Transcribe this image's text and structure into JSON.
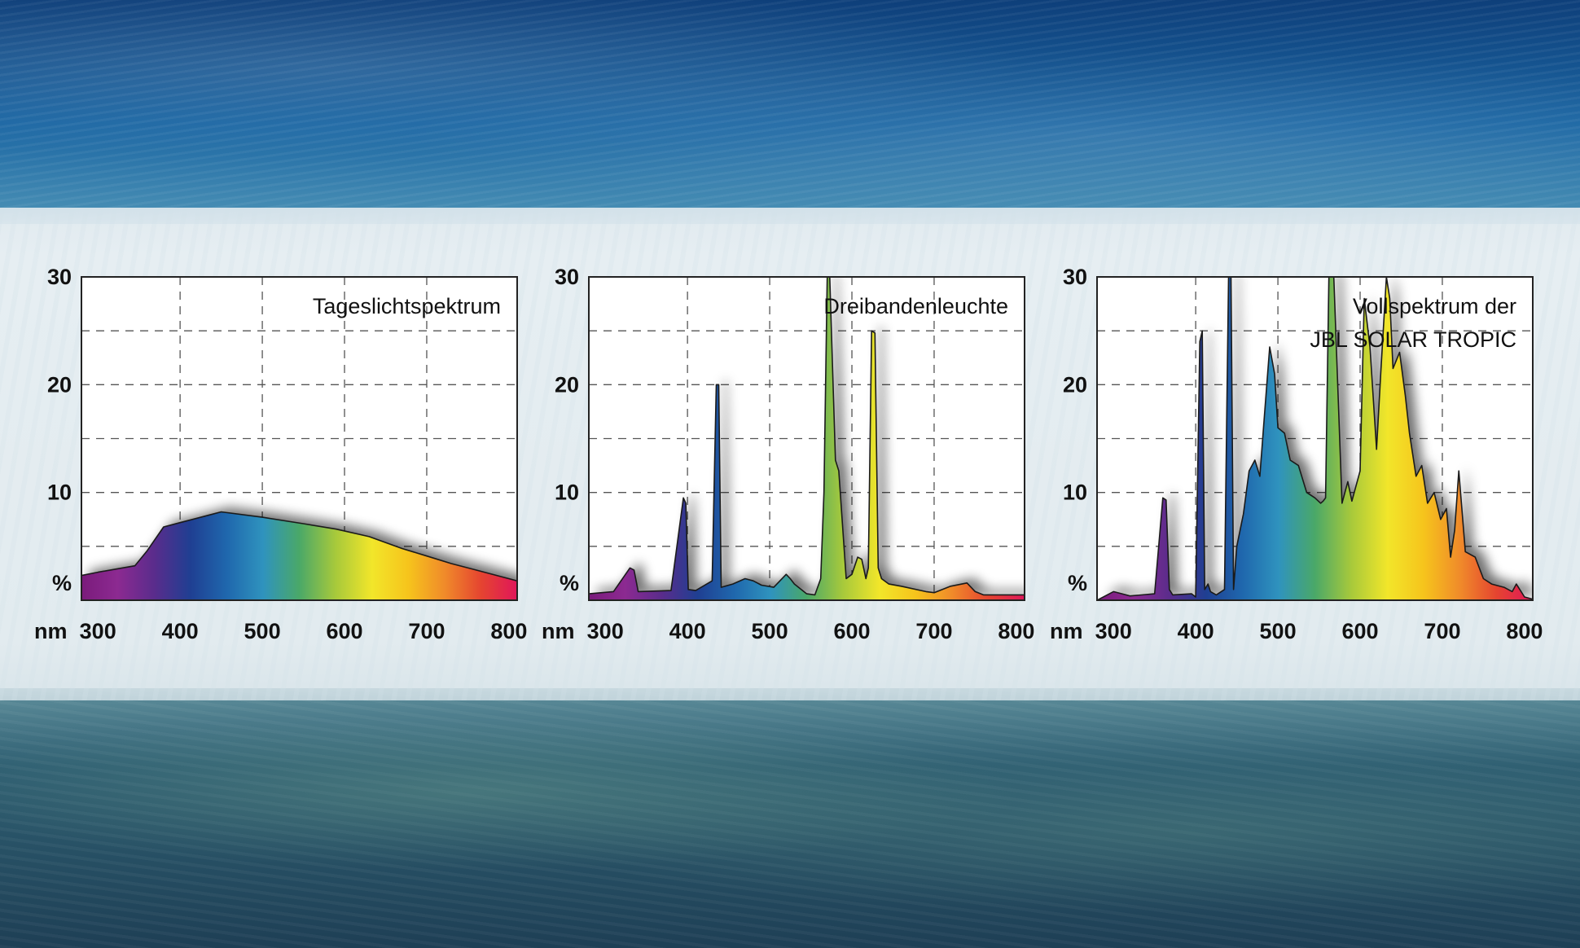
{
  "chart_data": [
    {
      "type": "area",
      "title": "Tageslichtspektrum",
      "title_lines": [
        "Tageslichtspektrum"
      ],
      "x_unit_label": "nm",
      "y_unit_label": "%",
      "xlim": [
        280,
        810
      ],
      "ylim": [
        0,
        30
      ],
      "x_ticks": [
        300,
        400,
        500,
        600,
        700,
        800
      ],
      "y_ticks": [
        10,
        20,
        30
      ],
      "grid": true,
      "x": [
        280,
        300,
        330,
        345,
        360,
        380,
        400,
        430,
        450,
        500,
        550,
        590,
        630,
        670,
        700,
        730,
        760,
        790,
        810
      ],
      "y": [
        2.3,
        2.6,
        3.0,
        3.2,
        4.6,
        6.8,
        7.2,
        7.8,
        8.2,
        7.7,
        7.1,
        6.6,
        5.9,
        4.8,
        4.1,
        3.4,
        2.8,
        2.2,
        1.8
      ]
    },
    {
      "type": "area",
      "title": "Dreibandenleuchte",
      "title_lines": [
        "Dreibandenleuchte"
      ],
      "x_unit_label": "nm",
      "y_unit_label": "%",
      "xlim": [
        280,
        810
      ],
      "ylim": [
        0,
        30
      ],
      "x_ticks": [
        300,
        400,
        500,
        600,
        700,
        800
      ],
      "y_ticks": [
        10,
        20,
        30
      ],
      "grid": true,
      "x": [
        280,
        310,
        330,
        335,
        340,
        380,
        395,
        398,
        401,
        410,
        430,
        435,
        438,
        441,
        455,
        470,
        480,
        490,
        505,
        520,
        525,
        530,
        545,
        555,
        562,
        566,
        570,
        573,
        580,
        584,
        593,
        600,
        607,
        612,
        617,
        620,
        624,
        628,
        632,
        636,
        645,
        660,
        690,
        700,
        720,
        740,
        750,
        760,
        810
      ],
      "y": [
        0.6,
        0.8,
        3.0,
        2.8,
        0.8,
        0.9,
        9.5,
        9.0,
        1.0,
        0.9,
        1.8,
        20.0,
        20.0,
        1.2,
        1.5,
        2.0,
        1.8,
        1.4,
        1.2,
        2.4,
        2.0,
        1.5,
        0.6,
        0.5,
        2.0,
        10.0,
        30.0,
        30.0,
        13.0,
        12.0,
        2.0,
        2.4,
        4.0,
        3.8,
        2.0,
        3.0,
        25.0,
        24.8,
        3.0,
        2.0,
        1.5,
        1.3,
        0.8,
        0.7,
        1.3,
        1.6,
        0.8,
        0.5,
        0.5
      ]
    },
    {
      "type": "area",
      "title": "Vollspektrum der JBL SOLAR TROPIC",
      "title_lines": [
        "Vollspektrum der",
        "JBL SOLAR TROPIC"
      ],
      "x_unit_label": "nm",
      "y_unit_label": "%",
      "xlim": [
        280,
        810
      ],
      "ylim": [
        0,
        30
      ],
      "x_ticks": [
        300,
        400,
        500,
        600,
        700,
        800
      ],
      "y_ticks": [
        10,
        20,
        30
      ],
      "grid": true,
      "x": [
        280,
        300,
        320,
        350,
        360,
        364,
        368,
        372,
        395,
        400,
        405,
        408,
        411,
        415,
        418,
        425,
        435,
        440,
        443,
        446,
        450,
        458,
        465,
        472,
        478,
        484,
        490,
        496,
        500,
        508,
        515,
        525,
        535,
        545,
        552,
        555,
        558,
        562,
        568,
        578,
        585,
        590,
        600,
        605,
        612,
        620,
        625,
        632,
        636,
        640,
        648,
        655,
        660,
        668,
        675,
        682,
        690,
        698,
        705,
        710,
        715,
        720,
        728,
        740,
        750,
        760,
        775,
        785,
        790,
        800,
        810
      ],
      "y": [
        0.0,
        0.8,
        0.4,
        0.6,
        9.5,
        9.3,
        1.0,
        0.5,
        0.6,
        0.3,
        24.0,
        25.0,
        1.0,
        1.5,
        0.8,
        0.5,
        1.0,
        30.0,
        30.0,
        1.0,
        5.0,
        8.0,
        12.0,
        13.0,
        11.5,
        17.5,
        23.5,
        21.0,
        16.0,
        15.5,
        13.0,
        12.5,
        10.0,
        9.5,
        9.0,
        9.2,
        9.5,
        30.0,
        30.0,
        9.0,
        11.0,
        9.2,
        12.0,
        28.0,
        23.5,
        14.0,
        21.0,
        30.0,
        28.0,
        21.5,
        23.0,
        19.0,
        15.5,
        11.5,
        12.5,
        9.0,
        10.0,
        7.5,
        8.5,
        4.0,
        6.5,
        12.0,
        4.5,
        4.0,
        2.0,
        1.5,
        1.2,
        0.8,
        1.5,
        0.3,
        0.1
      ]
    }
  ],
  "colors": {
    "spectrum_stops": [
      "#7a1b7b",
      "#8c2a91",
      "#5a2c8c",
      "#1f3f92",
      "#1f67ad",
      "#2f93be",
      "#4aa868",
      "#a7c93b",
      "#f2e62a",
      "#f6c41c",
      "#f08b2a",
      "#e54430",
      "#e0165a"
    ],
    "grid": "#555555",
    "frame": "#222222",
    "plot_bg": "#ffffff"
  }
}
